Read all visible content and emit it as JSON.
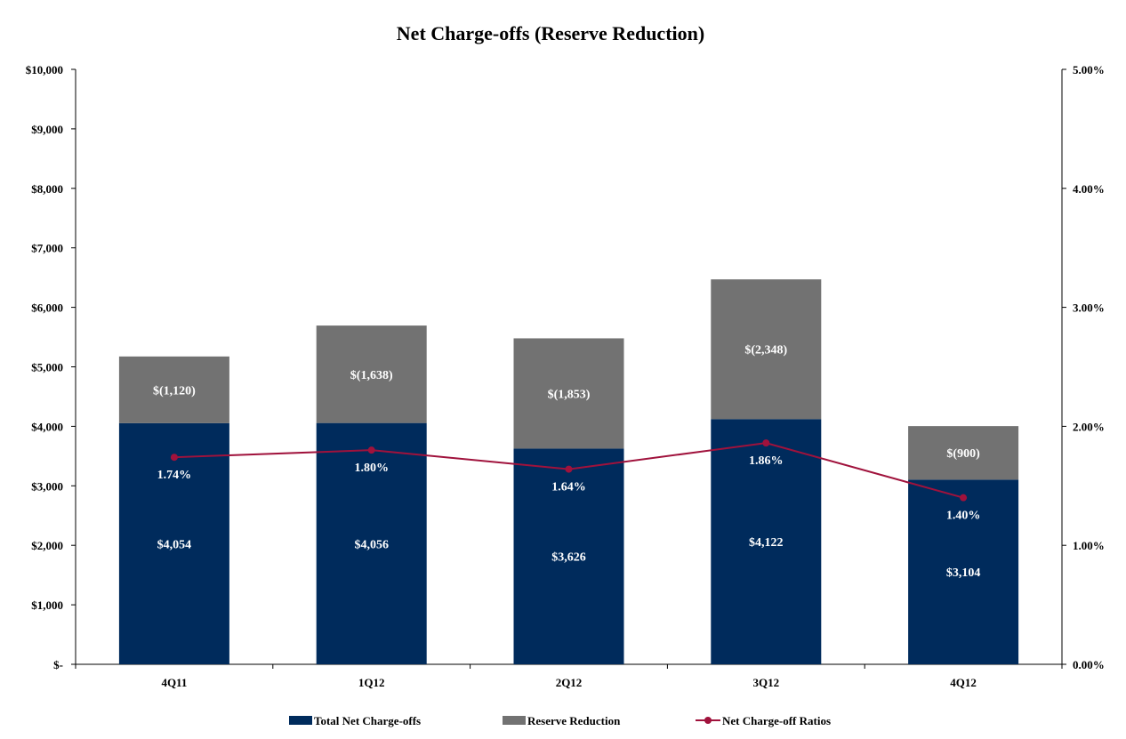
{
  "chart_data": {
    "type": "bar",
    "stacked": true,
    "title": "Net Charge-offs (Reserve Reduction)",
    "categories": [
      "4Q11",
      "1Q12",
      "2Q12",
      "3Q12",
      "4Q12"
    ],
    "series": [
      {
        "name": "Total Net Charge-offs",
        "type": "bar",
        "axis": "left",
        "color": "#002b5c",
        "values": [
          4054,
          4056,
          3626,
          4122,
          3104
        ],
        "labels": [
          "$4,054",
          "$4,056",
          "$3,626",
          "$4,122",
          "$3,104"
        ]
      },
      {
        "name": "Reserve Reduction",
        "type": "bar",
        "axis": "left",
        "color": "#727272",
        "values": [
          1120,
          1638,
          1853,
          2348,
          900
        ],
        "labels": [
          "$(1,120)",
          "$(1,638)",
          "$(1,853)",
          "$(2,348)",
          "$(900)"
        ]
      },
      {
        "name": "Net Charge-off Ratios",
        "type": "line",
        "axis": "right",
        "color": "#a0123c",
        "values": [
          1.74,
          1.8,
          1.64,
          1.86,
          1.4
        ],
        "labels": [
          "1.74%",
          "1.80%",
          "1.64%",
          "1.86%",
          "1.40%"
        ]
      }
    ],
    "y_left": {
      "ylim": [
        0,
        10000
      ],
      "ticks": [
        0,
        1000,
        2000,
        3000,
        4000,
        5000,
        6000,
        7000,
        8000,
        9000,
        10000
      ],
      "tick_labels": [
        "$-",
        "$1,000",
        "$2,000",
        "$3,000",
        "$4,000",
        "$5,000",
        "$6,000",
        "$7,000",
        "$8,000",
        "$9,000",
        "$10,000"
      ]
    },
    "y_right": {
      "ylim": [
        0,
        5
      ],
      "ticks": [
        0,
        1,
        2,
        3,
        4,
        5
      ],
      "tick_labels": [
        "0.00%",
        "1.00%",
        "2.00%",
        "3.00%",
        "4.00%",
        "5.00%"
      ]
    },
    "grid": false,
    "legend": "bottom"
  }
}
